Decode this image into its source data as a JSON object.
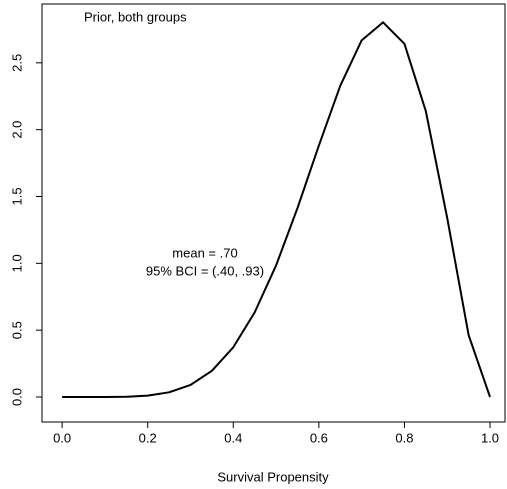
{
  "chart_data": {
    "type": "line",
    "annotations": [
      "Prior, both groups",
      "mean = .70",
      "95% BCI = (.40, .93)"
    ],
    "x_label": "Survival Propensity",
    "x": [
      0,
      0.05,
      0.1,
      0.15,
      0.2,
      0.25,
      0.3,
      0.35,
      0.4,
      0.45,
      0.5,
      0.55,
      0.6,
      0.65,
      0.7,
      0.75,
      0.8,
      0.85,
      0.9,
      0.95,
      1
    ],
    "series": [
      {
        "color": "#000000",
        "values": [
          0,
          0,
          0,
          0.002,
          0.01,
          0.035,
          0.09,
          0.196,
          0.372,
          0.633,
          0.984,
          1.413,
          1.881,
          2.328,
          2.668,
          2.803,
          2.642,
          2.138,
          1.339,
          0.463,
          0
        ]
      }
    ],
    "xlim": [
      -0.047,
      1.035
    ],
    "ylim": [
      -0.187,
      2.94
    ],
    "xticks": [
      {
        "value": 0,
        "label": "0.0"
      },
      0.2,
      0.4,
      0.6,
      0.8,
      {
        "value": 1,
        "label": "1.0"
      }
    ],
    "yticks": [
      {
        "value": 0,
        "label": "0.0"
      },
      0.5,
      {
        "value": 1,
        "label": "1.0"
      },
      1.5,
      {
        "value": 2,
        "label": "2.0"
      },
      2.5
    ],
    "grid": false
  }
}
